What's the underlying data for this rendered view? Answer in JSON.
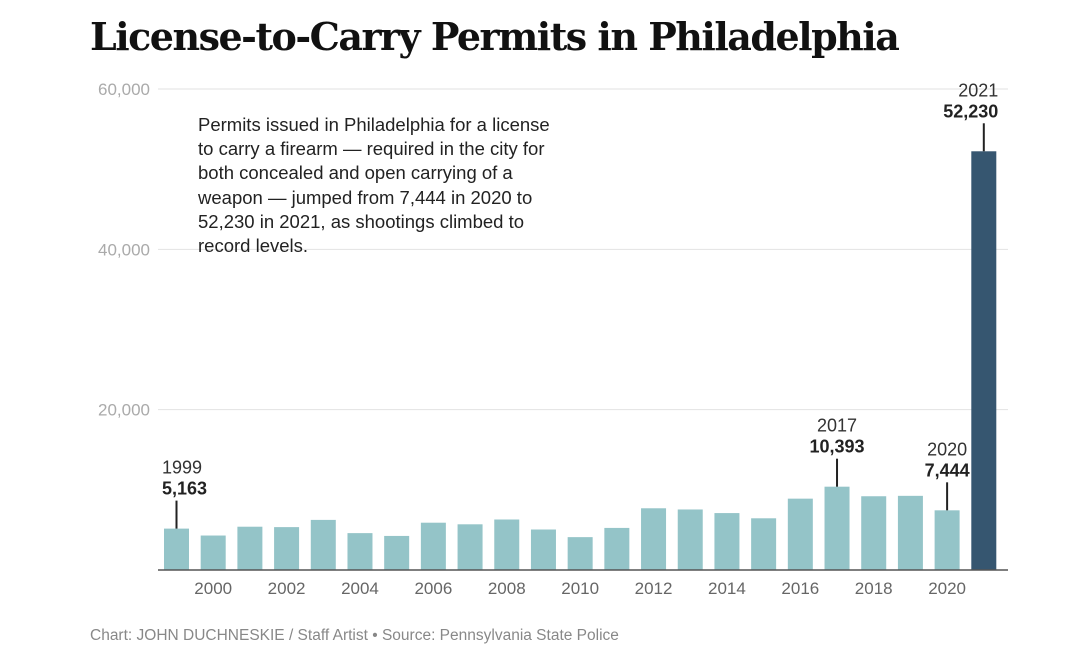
{
  "title": "License-to-Carry Permits in Philadelphia",
  "note": "Permits issued in Philadelphia for a license to carry a firearm — required in the city for both concealed and open carrying of a weapon — jumped from 7,444 in 2020 to 52,230 in 2021, as shootings climbed to record levels.",
  "footer": "Chart: JOHN DUCHNESKIE / Staff Artist • Source: Pennsylvania State Police",
  "colors": {
    "bar": "#94c4c8",
    "highlight": "#365670",
    "grid": "#e2e2e2",
    "axis": "#555555"
  },
  "chart_data": {
    "type": "bar",
    "title": "License-to-Carry Permits in Philadelphia",
    "xlabel": "",
    "ylabel": "",
    "ylim": [
      0,
      60000
    ],
    "yticks": [
      20000,
      40000,
      60000
    ],
    "ytick_labels": [
      "20,000",
      "40,000",
      "60,000"
    ],
    "xtick_labels": [
      "2000",
      "2002",
      "2004",
      "2006",
      "2008",
      "2010",
      "2012",
      "2014",
      "2016",
      "2018",
      "2020"
    ],
    "grid": true,
    "categories": [
      "1999",
      "2000",
      "2001",
      "2002",
      "2003",
      "2004",
      "2005",
      "2006",
      "2007",
      "2008",
      "2009",
      "2010",
      "2011",
      "2012",
      "2013",
      "2014",
      "2015",
      "2016",
      "2017",
      "2018",
      "2019",
      "2020",
      "2021"
    ],
    "values": [
      5163,
      4300,
      5400,
      5350,
      6250,
      4600,
      4250,
      5900,
      5700,
      6300,
      5050,
      4100,
      5250,
      7700,
      7550,
      7100,
      6450,
      8900,
      10393,
      9200,
      9250,
      7444,
      52230
    ],
    "highlight": "2021",
    "annotations": [
      {
        "year": "1999",
        "value": "5,163"
      },
      {
        "year": "2017",
        "value": "10,393"
      },
      {
        "year": "2020",
        "value": "7,444"
      },
      {
        "year": "2021",
        "value": "52,230"
      }
    ]
  }
}
